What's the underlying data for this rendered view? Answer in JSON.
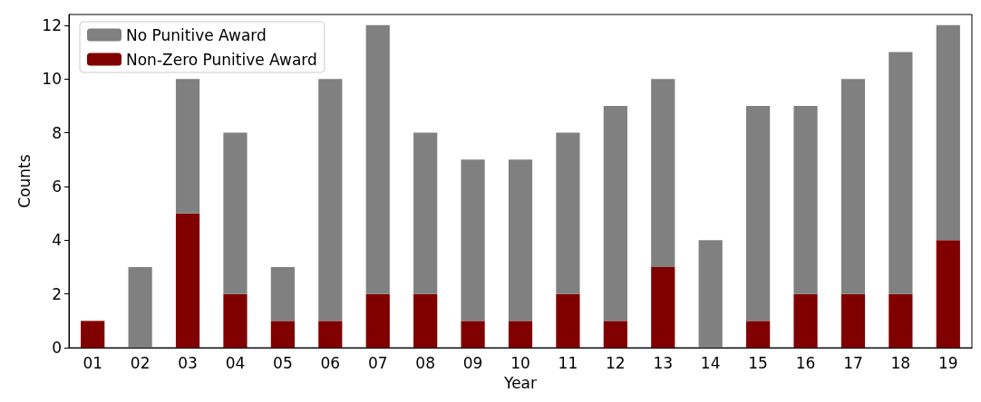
{
  "chart_data": {
    "type": "bar",
    "stacked": true,
    "xlabel": "Year",
    "ylabel": "Counts",
    "categories": [
      "01",
      "02",
      "03",
      "04",
      "05",
      "06",
      "07",
      "08",
      "09",
      "10",
      "11",
      "12",
      "13",
      "14",
      "15",
      "16",
      "17",
      "18",
      "19"
    ],
    "series": [
      {
        "name": "Non-Zero Punitive Award",
        "color": "#800000",
        "values": [
          1,
          0,
          5,
          2,
          1,
          1,
          2,
          2,
          1,
          1,
          2,
          1,
          3,
          0,
          1,
          2,
          2,
          2,
          4
        ]
      },
      {
        "name": "No Punitive Award",
        "color": "#808080",
        "values": [
          0,
          3,
          5,
          6,
          2,
          9,
          10,
          6,
          6,
          6,
          6,
          8,
          7,
          4,
          8,
          7,
          8,
          9,
          8
        ]
      }
    ],
    "ylim": [
      0,
      12.4
    ],
    "yticks": [
      0,
      2,
      4,
      6,
      8,
      10,
      12
    ],
    "grid": false,
    "legend": "top left"
  }
}
